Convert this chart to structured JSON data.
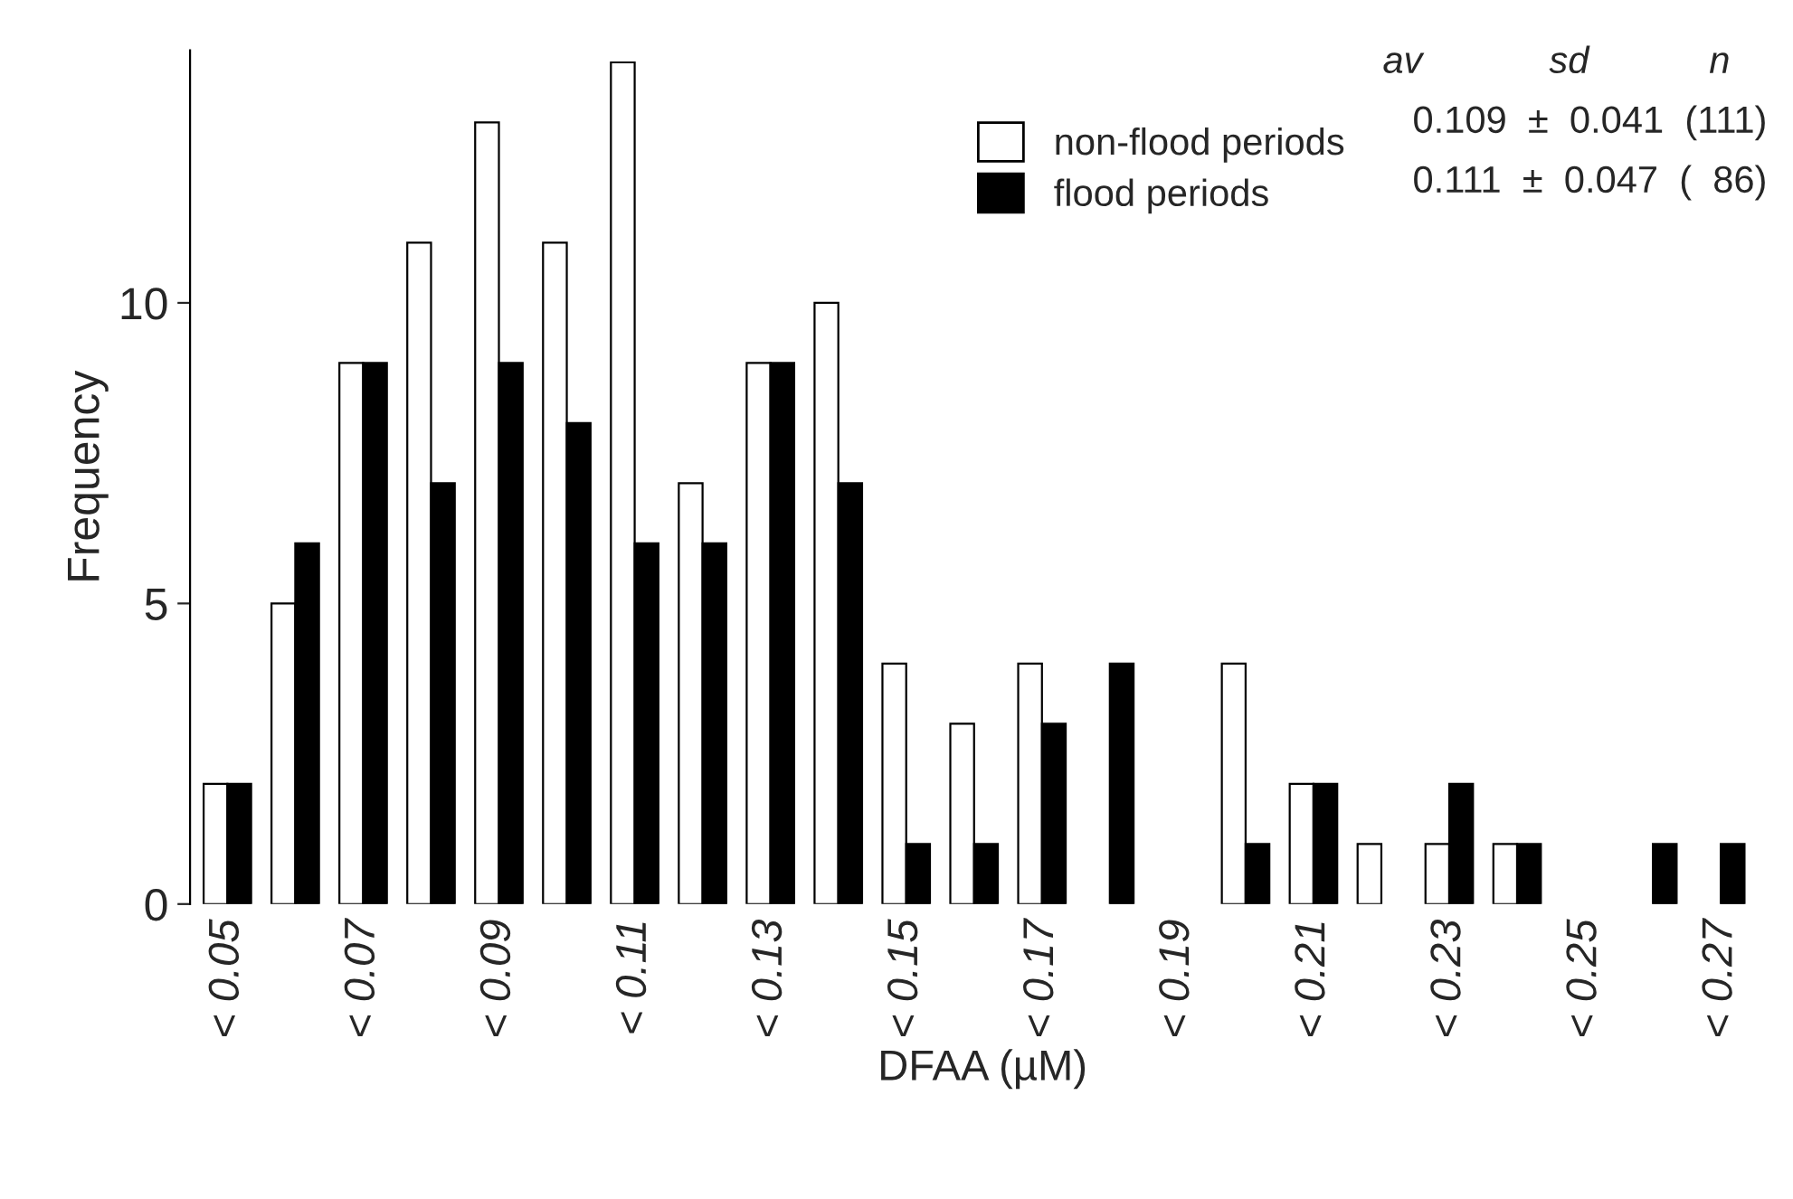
{
  "chart_data": {
    "type": "bar",
    "xlabel": "DFAA (µM)",
    "ylabel": "Frequency",
    "categories": [
      "< 0.05",
      null,
      "< 0.07",
      null,
      "< 0.09",
      null,
      "< 0.11",
      null,
      "< 0.13",
      null,
      "< 0.15",
      null,
      "< 0.17",
      null,
      "< 0.19",
      null,
      "< 0.21",
      null,
      "< 0.23",
      null,
      "< 0.25",
      null,
      "< 0.27"
    ],
    "series": [
      {
        "name": "non-flood periods",
        "color": "#ffffff",
        "values": [
          2,
          5,
          9,
          11,
          13,
          11,
          14,
          7,
          9,
          10,
          4,
          3,
          4,
          0,
          0,
          4,
          2,
          1,
          1,
          1,
          0,
          0,
          0
        ]
      },
      {
        "name": "flood periods",
        "color": "#000000",
        "values": [
          2,
          6,
          9,
          7,
          9,
          8,
          6,
          6,
          9,
          7,
          1,
          1,
          3,
          4,
          0,
          1,
          2,
          0,
          2,
          1,
          0,
          1,
          1
        ]
      }
    ],
    "ylim": [
      0,
      14.2
    ],
    "yticks": [
      0,
      5,
      10
    ],
    "grid": false,
    "legend": "top right",
    "annotations": [
      "av",
      "sd",
      "n",
      "0.109  ±  0.041  (111)",
      "0.111  ±  0.047  (  86)"
    ]
  }
}
